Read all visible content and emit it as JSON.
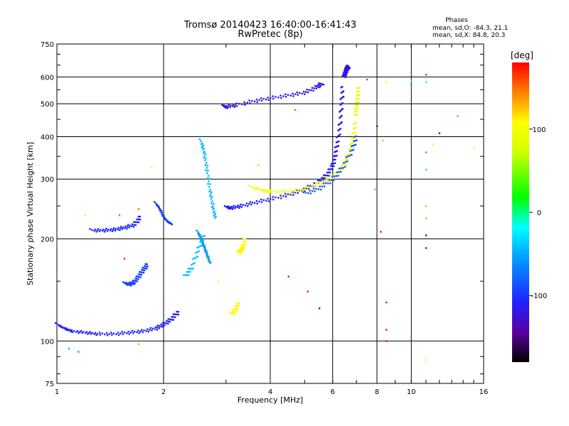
{
  "chart_data": {
    "type": "scatter",
    "title": "Tromsø 20140423 16:40:00-16:41:43",
    "subtitle": "RwPretec (8p)",
    "xlabel": "Frequency [MHz]",
    "ylabel": "Stationary phase Virtual Height [km]",
    "x_scale": "log",
    "y_scale": "log",
    "xlim": [
      1,
      16
    ],
    "ylim": [
      75,
      750
    ],
    "grid": true,
    "x_ticks": [
      1,
      2,
      4,
      6,
      8,
      10,
      16
    ],
    "x_tick_labels": [
      "1",
      "2",
      "4",
      "6",
      "8",
      "10",
      "16"
    ],
    "y_ticks": [
      75,
      100,
      200,
      300,
      400,
      500,
      600,
      750
    ],
    "y_tick_labels": [
      "75",
      "100",
      "200",
      "300",
      "400",
      "500",
      "600",
      "750"
    ],
    "phase_info": {
      "title": "Phases",
      "o_line": "mean, sd,O: -84.3, 21.1",
      "x_line": "mean, sd,X:  84.8, 20.3"
    },
    "colorbar": {
      "label": "[deg]",
      "range": [
        -180,
        180
      ],
      "ticks": [
        100,
        0,
        -100
      ],
      "tick_labels": [
        "100",
        "0",
        "-100"
      ]
    },
    "series": [
      {
        "x": [
          1.0,
          1.05,
          1.1,
          1.2,
          1.3,
          1.45,
          1.6,
          1.75,
          1.9,
          2.0,
          2.1,
          2.2
        ],
        "y": [
          112,
          109,
          107,
          106,
          105,
          105,
          106,
          107,
          109,
          112,
          116,
          122
        ],
        "phase": -110
      },
      {
        "x": [
          1.25,
          1.35,
          1.45,
          1.55,
          1.65,
          1.72
        ],
        "y": [
          212,
          212,
          213,
          216,
          220,
          232
        ],
        "phase": -105
      },
      {
        "x": [
          1.55,
          1.6,
          1.65,
          1.7,
          1.75,
          1.8
        ],
        "y": [
          148,
          147,
          149,
          155,
          162,
          168
        ],
        "phase": -95
      },
      {
        "x": [
          1.9,
          1.95,
          2.0,
          2.05,
          2.1
        ],
        "y": [
          255,
          245,
          232,
          225,
          222
        ],
        "phase": -95
      },
      {
        "x": [
          3.0,
          3.1,
          3.3,
          3.6,
          4.0,
          4.5,
          5.0,
          5.5,
          5.8,
          6.0
        ],
        "y": [
          248,
          247,
          250,
          256,
          262,
          270,
          280,
          295,
          310,
          330
        ],
        "phase": -110
      },
      {
        "x": [
          6.0,
          6.1,
          6.2,
          6.3,
          6.35,
          6.4
        ],
        "y": [
          330,
          355,
          390,
          440,
          500,
          560
        ],
        "phase": -118
      },
      {
        "x": [
          6.45,
          6.5,
          6.55,
          6.6,
          6.65
        ],
        "y": [
          600,
          615,
          630,
          640,
          645
        ],
        "phase": -118
      },
      {
        "x": [
          2.95,
          3.0,
          3.2,
          3.6,
          4.0,
          4.5,
          5.0,
          5.4,
          5.6
        ],
        "y": [
          492,
          490,
          496,
          510,
          520,
          530,
          540,
          560,
          575
        ],
        "phase": -118
      },
      {
        "x": [
          3.5,
          3.8,
          4.0,
          4.5,
          5.0,
          5.5,
          6.0,
          6.4,
          6.7,
          6.85,
          6.95
        ],
        "y": [
          285,
          278,
          276,
          276,
          280,
          290,
          305,
          325,
          360,
          400,
          440
        ],
        "phase": 100
      },
      {
        "x": [
          6.95,
          7.0,
          7.05,
          7.1
        ],
        "y": [
          460,
          490,
          520,
          560
        ],
        "phase": 90
      },
      {
        "x": [
          5.0,
          5.5,
          6.0,
          6.4,
          6.8,
          7.0
        ],
        "y": [
          272,
          282,
          300,
          325,
          365,
          400
        ],
        "phase": -85
      },
      {
        "x": [
          2.55,
          2.6,
          2.65,
          2.7,
          2.75,
          2.8
        ],
        "y": [
          390,
          360,
          320,
          280,
          250,
          230
        ],
        "phase": -45
      },
      {
        "x": [
          2.5,
          2.55,
          2.6,
          2.65,
          2.7
        ],
        "y": [
          210,
          200,
          190,
          180,
          170
        ],
        "phase": -60
      },
      {
        "x": [
          2.3,
          2.4,
          2.5,
          2.6
        ],
        "y": [
          155,
          165,
          185,
          205
        ],
        "phase": -40
      },
      {
        "x": [
          3.25,
          3.3,
          3.35,
          3.4
        ],
        "y": [
          182,
          185,
          190,
          200
        ],
        "phase": 110
      },
      {
        "x": [
          3.1,
          3.2,
          3.25
        ],
        "y": [
          120,
          124,
          130
        ],
        "phase": 110
      }
    ],
    "points": [
      {
        "x": 11.0,
        "y": 610,
        "phase": 170
      },
      {
        "x": 11.0,
        "y": 580,
        "phase": -20
      },
      {
        "x": 13.5,
        "y": 460,
        "phase": -30
      },
      {
        "x": 12.0,
        "y": 410,
        "phase": -140
      },
      {
        "x": 11.5,
        "y": 380,
        "phase": 95
      },
      {
        "x": 11.0,
        "y": 360,
        "phase": 150
      },
      {
        "x": 11.0,
        "y": 320,
        "phase": -30
      },
      {
        "x": 11.0,
        "y": 250,
        "phase": 40
      },
      {
        "x": 11.0,
        "y": 230,
        "phase": 40
      },
      {
        "x": 11.0,
        "y": 205,
        "phase": -130
      },
      {
        "x": 11.0,
        "y": 188,
        "phase": -120
      },
      {
        "x": 11.0,
        "y": 88,
        "phase": 110
      },
      {
        "x": 8.5,
        "y": 130,
        "phase": 175
      },
      {
        "x": 8.5,
        "y": 108,
        "phase": 175
      },
      {
        "x": 8.5,
        "y": 100,
        "phase": 175
      },
      {
        "x": 8.2,
        "y": 210,
        "phase": 175
      },
      {
        "x": 4.7,
        "y": 480,
        "phase": 150
      },
      {
        "x": 4.5,
        "y": 155,
        "phase": 175
      },
      {
        "x": 5.1,
        "y": 140,
        "phase": 175
      },
      {
        "x": 5.5,
        "y": 125,
        "phase": -120
      },
      {
        "x": 7.5,
        "y": 590,
        "phase": -70
      },
      {
        "x": 8.0,
        "y": 430,
        "phase": -120
      },
      {
        "x": 8.5,
        "y": 580,
        "phase": 100
      },
      {
        "x": 10.0,
        "y": 585,
        "phase": -20
      },
      {
        "x": 15.0,
        "y": 370,
        "phase": 110
      },
      {
        "x": 1.2,
        "y": 235,
        "phase": 110
      },
      {
        "x": 1.5,
        "y": 235,
        "phase": 150
      },
      {
        "x": 1.7,
        "y": 245,
        "phase": 150
      },
      {
        "x": 1.85,
        "y": 325,
        "phase": 100
      },
      {
        "x": 1.7,
        "y": 98,
        "phase": 130
      },
      {
        "x": 1.55,
        "y": 175,
        "phase": 175
      },
      {
        "x": 1.08,
        "y": 95,
        "phase": -40
      },
      {
        "x": 1.15,
        "y": 93,
        "phase": -50
      },
      {
        "x": 2.85,
        "y": 150,
        "phase": 110
      },
      {
        "x": 3.7,
        "y": 330,
        "phase": 120
      },
      {
        "x": 7.9,
        "y": 280,
        "phase": 140
      },
      {
        "x": 8.0,
        "y": 330,
        "phase": 150
      },
      {
        "x": 8.3,
        "y": 390,
        "phase": 130
      }
    ]
  }
}
